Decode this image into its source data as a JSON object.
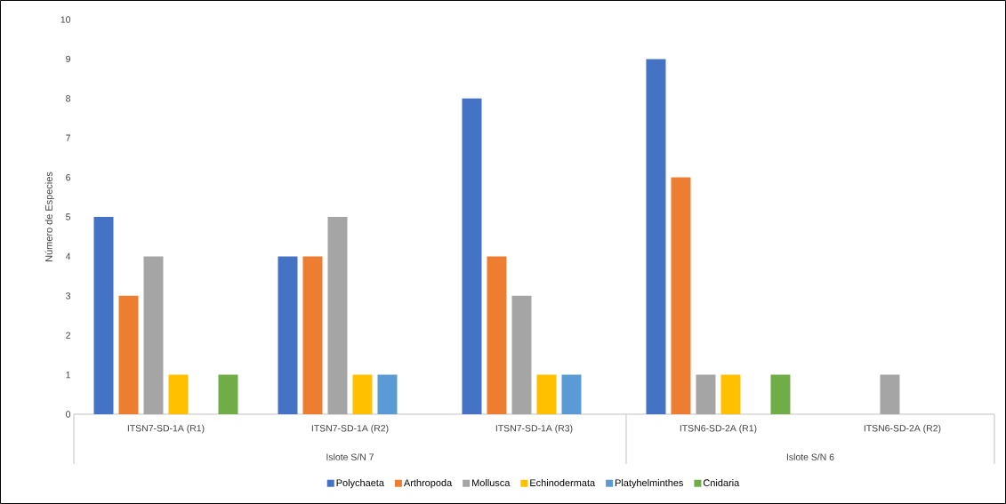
{
  "chart_data": {
    "type": "bar",
    "ylabel": "Número de Especies",
    "categories": [
      "ITSN7-SD-1A (R1)",
      "ITSN7-SD-1A (R2)",
      "ITSN7-SD-1A (R3)",
      "ITSN6-SD-2A (R1)",
      "ITSN6-SD-2A (R2)"
    ],
    "series": [
      {
        "name": "Polychaeta",
        "color": "#4472c4",
        "values": [
          5,
          4,
          8,
          9,
          null
        ]
      },
      {
        "name": "Arthropoda",
        "color": "#ed7d31",
        "values": [
          3,
          4,
          4,
          6,
          null
        ]
      },
      {
        "name": "Mollusca",
        "color": "#a5a5a5",
        "values": [
          4,
          5,
          3,
          1,
          1
        ]
      },
      {
        "name": "Echinodermata",
        "color": "#ffc000",
        "values": [
          1,
          1,
          1,
          1,
          null
        ]
      },
      {
        "name": "Platyhelminthes",
        "color": "#5b9bd5",
        "values": [
          null,
          1,
          1,
          null,
          null
        ]
      },
      {
        "name": "Cnidaria",
        "color": "#70ad47",
        "values": [
          1,
          null,
          null,
          1,
          null
        ]
      }
    ],
    "annotations": [
      "Islote S/N 7",
      "Islote S/N 6"
    ],
    "ylim": [
      0,
      10
    ],
    "yticks": [
      0,
      1,
      2,
      3,
      4,
      5,
      6,
      7,
      8,
      9,
      10
    ],
    "grid": false,
    "legend": "bottom"
  }
}
